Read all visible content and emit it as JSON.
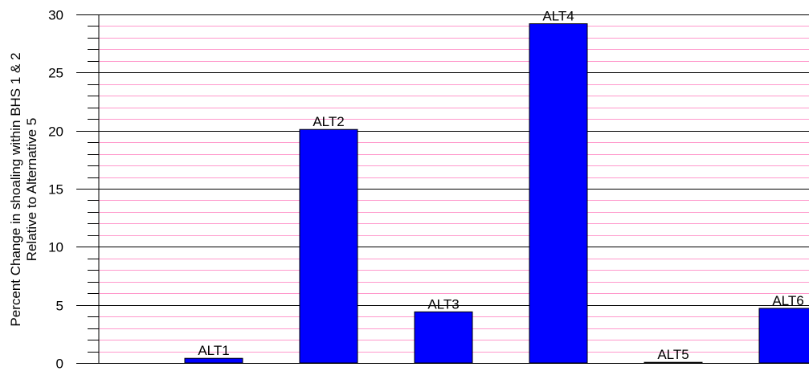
{
  "chart_data": {
    "type": "bar",
    "categories": [
      "ALT1",
      "ALT2",
      "ALT3",
      "ALT4",
      "ALT5",
      "ALT6"
    ],
    "values": [
      0.4,
      20.1,
      4.4,
      29.2,
      0.05,
      4.7
    ],
    "data_labels": [
      "ALT1",
      "ALT2",
      "ALT3",
      "ALT4",
      "ALT5",
      "ALT6"
    ],
    "ylabel_lines": [
      "Percent Change in shoaling within BHS 1 & 2",
      "Relative to Alternative 5"
    ],
    "ylim": [
      0,
      30
    ],
    "yticks": [
      0,
      5,
      10,
      15,
      20,
      25,
      30
    ],
    "minor_step": 1,
    "grid": true,
    "legend": "none",
    "colors": {
      "bar": "#0000ff",
      "bar_edge": "#000000",
      "major_grid": "#000000",
      "minor_grid": "#ff99cc"
    }
  }
}
